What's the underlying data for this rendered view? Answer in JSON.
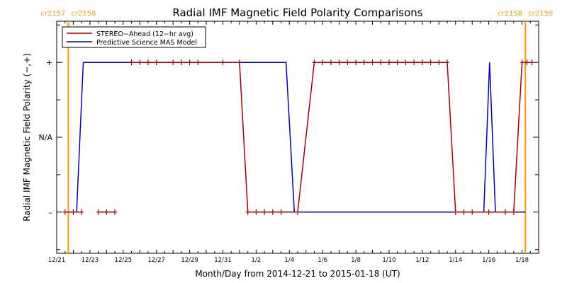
{
  "chart_data": {
    "type": "line",
    "title": "Radial IMF Magnetic Field Polarity Comparisons",
    "xlabel": "Month/Day from 2014-12-21 to 2015-01-18 (UT)",
    "ylabel": "Radial IMF Magnetic Field Polarity (−,+)",
    "x_start": "2014-12-21",
    "x_end": "2015-01-18",
    "xlim_days": [
      0,
      29
    ],
    "ylim": [
      -1.55,
      1.55
    ],
    "x_ticks": [
      {
        "day": 0,
        "label": "12/21"
      },
      {
        "day": 2,
        "label": "12/23"
      },
      {
        "day": 4,
        "label": "12/25"
      },
      {
        "day": 6,
        "label": "12/27"
      },
      {
        "day": 8,
        "label": "12/29"
      },
      {
        "day": 10,
        "label": "12/31"
      },
      {
        "day": 12,
        "label": "1/2"
      },
      {
        "day": 14,
        "label": "1/4"
      },
      {
        "day": 16,
        "label": "1/6"
      },
      {
        "day": 18,
        "label": "1/8"
      },
      {
        "day": 20,
        "label": "1/10"
      },
      {
        "day": 22,
        "label": "1/12"
      },
      {
        "day": 24,
        "label": "1/14"
      },
      {
        "day": 26,
        "label": "1/16"
      },
      {
        "day": 28,
        "label": "1/18"
      }
    ],
    "y_ticks": [
      {
        "value": 1,
        "label": "+"
      },
      {
        "value": 0,
        "label": "N/A"
      },
      {
        "value": -1,
        "label": "–"
      }
    ],
    "carrington_markers": [
      {
        "day": 0.7,
        "color": "#ff9900",
        "labels": [
          "cr2157",
          "cr2158"
        ]
      },
      {
        "day": 28.2,
        "color": "#ff9900",
        "labels": [
          "cr2158",
          "cr2159"
        ]
      }
    ],
    "series": [
      {
        "name": "STEREO−Ahead (12−hr avg)",
        "color": "#aa0000",
        "markers": true,
        "segments": [
          [
            {
              "x": 0.5,
              "y": -1
            },
            {
              "x": 1.0,
              "y": -1
            },
            {
              "x": 1.5,
              "y": -1
            }
          ],
          [
            {
              "x": 2.5,
              "y": -1
            },
            {
              "x": 3.0,
              "y": -1
            },
            {
              "x": 3.5,
              "y": -1
            }
          ],
          [
            {
              "x": 4.5,
              "y": 1
            },
            {
              "x": 5.0,
              "y": 1
            },
            {
              "x": 5.5,
              "y": 1
            },
            {
              "x": 6.0,
              "y": 1
            },
            {
              "x": 7.0,
              "y": 1
            },
            {
              "x": 7.5,
              "y": 1
            },
            {
              "x": 8.0,
              "y": 1
            },
            {
              "x": 8.5,
              "y": 1
            },
            {
              "x": 10.0,
              "y": 1
            },
            {
              "x": 11.0,
              "y": 1
            },
            {
              "x": 11.5,
              "y": -1
            },
            {
              "x": 12.0,
              "y": -1
            },
            {
              "x": 12.5,
              "y": -1
            },
            {
              "x": 13.0,
              "y": -1
            },
            {
              "x": 13.5,
              "y": -1
            },
            {
              "x": 14.5,
              "y": -1
            },
            {
              "x": 15.5,
              "y": 1
            },
            {
              "x": 16.0,
              "y": 1
            },
            {
              "x": 16.5,
              "y": 1
            },
            {
              "x": 17.0,
              "y": 1
            },
            {
              "x": 17.5,
              "y": 1
            },
            {
              "x": 18.0,
              "y": 1
            },
            {
              "x": 18.5,
              "y": 1
            },
            {
              "x": 19.0,
              "y": 1
            },
            {
              "x": 19.5,
              "y": 1
            },
            {
              "x": 20.0,
              "y": 1
            },
            {
              "x": 20.5,
              "y": 1
            },
            {
              "x": 21.0,
              "y": 1
            },
            {
              "x": 21.5,
              "y": 1
            },
            {
              "x": 22.0,
              "y": 1
            },
            {
              "x": 22.5,
              "y": 1
            },
            {
              "x": 23.0,
              "y": 1
            },
            {
              "x": 23.5,
              "y": 1
            },
            {
              "x": 24.0,
              "y": -1
            },
            {
              "x": 24.5,
              "y": -1
            },
            {
              "x": 25.0,
              "y": -1
            },
            {
              "x": 26.0,
              "y": -1
            },
            {
              "x": 27.0,
              "y": -1
            },
            {
              "x": 27.5,
              "y": -1
            },
            {
              "x": 28.0,
              "y": 1
            },
            {
              "x": 28.3,
              "y": 1
            },
            {
              "x": 28.6,
              "y": 1
            }
          ]
        ]
      },
      {
        "name": "Predictive Science MAS Model",
        "color": "#0000cc",
        "markers": false,
        "segments": [
          [
            {
              "x": 0.5,
              "y": -1
            },
            {
              "x": 1.2,
              "y": -1
            },
            {
              "x": 1.6,
              "y": 1
            },
            {
              "x": 13.8,
              "y": 1
            },
            {
              "x": 14.3,
              "y": -1
            },
            {
              "x": 25.7,
              "y": -1
            },
            {
              "x": 26.05,
              "y": 1
            },
            {
              "x": 26.4,
              "y": -1
            },
            {
              "x": 28.2,
              "y": -1
            }
          ]
        ]
      }
    ],
    "legend_position": "top-left"
  }
}
